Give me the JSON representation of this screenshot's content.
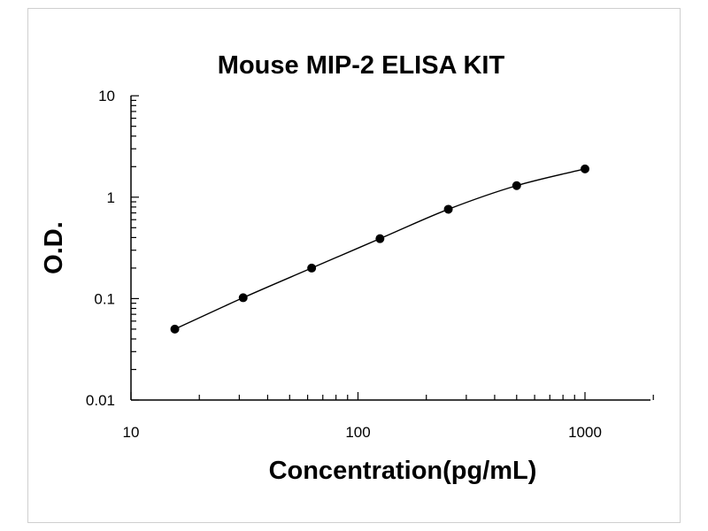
{
  "chart_data": {
    "type": "scatter",
    "title": "Mouse MIP-2 ELISA KIT",
    "xlabel": "Concentration(pg/mL)",
    "ylabel": "O.D.",
    "xscale": "log",
    "yscale": "log",
    "xlim": [
      10,
      2000
    ],
    "ylim": [
      0.01,
      10
    ],
    "xticks": [
      10,
      100,
      1000
    ],
    "xtick_labels": [
      "10",
      "100",
      "1000"
    ],
    "yticks": [
      0.01,
      0.1,
      1,
      10
    ],
    "ytick_labels": [
      "0.01",
      "0.1",
      "1",
      "10"
    ],
    "grid": false,
    "legend": "none",
    "series": [
      {
        "x": [
          15.6,
          31.2,
          62.5,
          125,
          250,
          500,
          1000
        ],
        "y": [
          0.05,
          0.102,
          0.2,
          0.39,
          0.76,
          1.3,
          1.9
        ],
        "marker": "circle",
        "fit_curve": true
      }
    ]
  }
}
